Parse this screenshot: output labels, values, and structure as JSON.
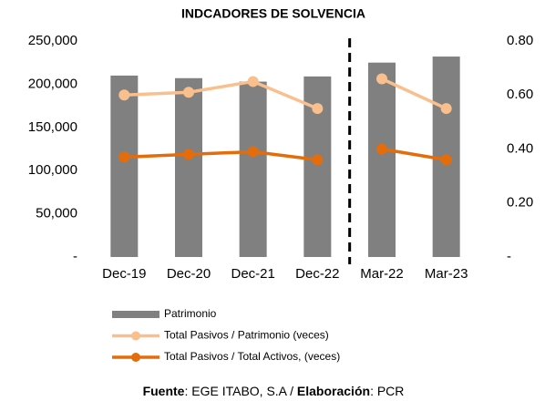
{
  "chart_data": {
    "type": "bar_line",
    "title": "INDCADORES DE SOLVENCIA",
    "categories": [
      "Dec-19",
      "Dec-20",
      "Dec-21",
      "Dec-22",
      "Mar-22",
      "Mar-23"
    ],
    "series": [
      {
        "name": "Patrimonio",
        "type": "bar",
        "color": "#808080",
        "axis": "y",
        "values": [
          210000,
          207000,
          203000,
          209000,
          225000,
          232000
        ]
      },
      {
        "name": "Total Pasivos / Patrimonio (veces)",
        "type": "line",
        "color": "#f9c08e",
        "axis": "y2",
        "values": [
          0.6,
          0.61,
          0.65,
          0.55,
          0.66,
          0.55
        ]
      },
      {
        "name": "Total Pasivos / Total Activos, (veces)",
        "type": "line",
        "color": "#e46c0a",
        "axis": "y2",
        "values": [
          0.37,
          0.38,
          0.39,
          0.36,
          0.4,
          0.36
        ]
      }
    ],
    "ylim": [
      0,
      250000
    ],
    "yticks": [
      {
        "value": 0,
        "label": "-"
      },
      {
        "value": 50000,
        "label": "50,000"
      },
      {
        "value": 100000,
        "label": "100,000"
      },
      {
        "value": 150000,
        "label": "150,000"
      },
      {
        "value": 200000,
        "label": "200,000"
      },
      {
        "value": 250000,
        "label": "250,000"
      }
    ],
    "y2lim": [
      0,
      0.8
    ],
    "y2ticks": [
      {
        "value": 0,
        "label": "-"
      },
      {
        "value": 0.2,
        "label": "0.20"
      },
      {
        "value": 0.4,
        "label": "0.40"
      },
      {
        "value": 0.6,
        "label": "0.60"
      },
      {
        "value": 0.8,
        "label": "0.80"
      }
    ],
    "grid": false,
    "divider": {
      "after_index": 3,
      "style": "dashed"
    },
    "legend": "bottom",
    "source": {
      "label1": "Fuente",
      "text1": ": EGE ITABO, S.A / ",
      "label2": "Elaboración",
      "text2": ": PCR"
    }
  }
}
